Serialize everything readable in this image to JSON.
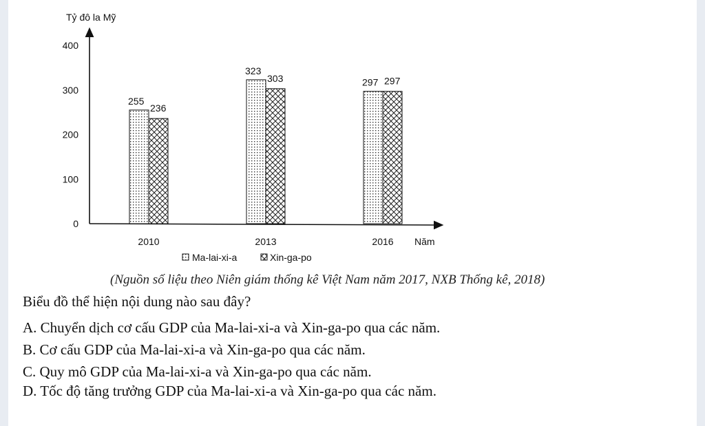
{
  "chart_data": {
    "type": "bar",
    "ylabel": "Tỷ đô la Mỹ",
    "xlabel": "Năm",
    "categories": [
      "2010",
      "2013",
      "2016"
    ],
    "ylim": [
      0,
      400
    ],
    "yticks": [
      0,
      100,
      200,
      300,
      400
    ],
    "series": [
      {
        "name": "Ma-lai-xi-a",
        "values": [
          255,
          323,
          297
        ],
        "pattern": "dots"
      },
      {
        "name": "Xin-ga-po",
        "values": [
          236,
          303,
          297
        ],
        "pattern": "crosshatch"
      }
    ],
    "legend_position": "bottom"
  },
  "source_note": "(Nguồn số liệu theo Niên giám thống kê Việt Nam năm 2017, NXB Thống kê, 2018)",
  "question": "Biểu đồ thể hiện nội dung nào sau đây?",
  "options": [
    "A. Chuyển dịch cơ cấu GDP của Ma-lai-xi-a và Xin-ga-po qua các năm.",
    "B. Cơ cấu GDP của Ma-lai-xi-a và Xin-ga-po qua các năm.",
    "C. Quy mô GDP của Ma-lai-xi-a và Xin-ga-po qua các năm.",
    "D. Tốc độ tăng trưởng GDP của Ma-lai-xi-a và Xin-ga-po qua các năm."
  ]
}
